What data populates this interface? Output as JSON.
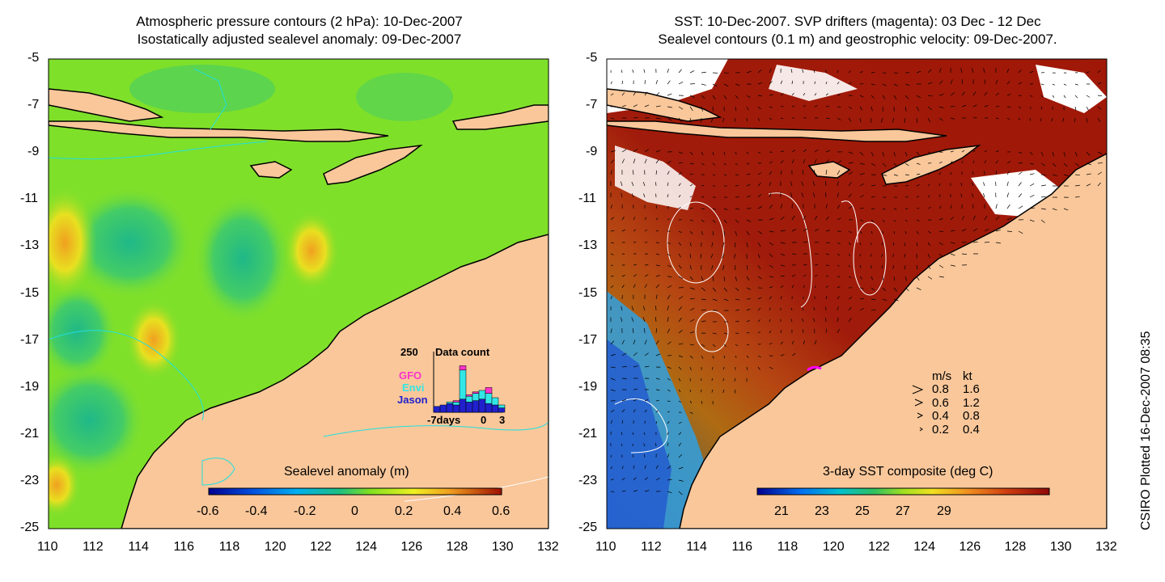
{
  "left_panel": {
    "title_line1": "Atmospheric pressure contours (2 hPa): 10-Dec-2007",
    "title_line2": "Isostatically adjusted sealevel anomaly: 09-Dec-2007",
    "colorbar_label": "Sealevel anomaly (m)",
    "colorbar_ticks": [
      "-0.6",
      "-0.4",
      "-0.2",
      "0",
      "0.2",
      "0.4",
      "0.6"
    ],
    "inset": {
      "title": "Data count",
      "ymax_label": "250",
      "x_left_label": "-7days",
      "x_mid_label": "0",
      "x_right_label": "3",
      "legend": [
        {
          "name": "GFO",
          "color": "#ff33cc"
        },
        {
          "name": "Envi",
          "color": "#33e6e6"
        },
        {
          "name": "Jason",
          "color": "#2020cc"
        }
      ]
    }
  },
  "right_panel": {
    "title_line1": "SST: 10-Dec-2007. SVP drifters (magenta): 03 Dec - 12 Dec",
    "title_line2": "Sealevel contours (0.1 m) and geostrophic velocity: 09-Dec-2007.",
    "colorbar_label": "3-day SST composite (deg C)",
    "colorbar_ticks": [
      "21",
      "23",
      "25",
      "27",
      "29"
    ],
    "velocity_legend": {
      "header_ms": "m/s",
      "header_kt": "kt",
      "rows": [
        {
          "ms": "0.8",
          "kt": "1.6"
        },
        {
          "ms": "0.6",
          "kt": "1.2"
        },
        {
          "ms": "0.4",
          "kt": "0.8"
        },
        {
          "ms": "0.2",
          "kt": "0.4"
        }
      ]
    }
  },
  "axes": {
    "lat_ticks": [
      "-5",
      "-7",
      "-9",
      "-11",
      "-13",
      "-15",
      "-17",
      "-19",
      "-21",
      "-23",
      "-25"
    ],
    "lon_ticks": [
      "110",
      "112",
      "114",
      "116",
      "118",
      "120",
      "122",
      "124",
      "126",
      "128",
      "130",
      "132"
    ]
  },
  "credit": "CSIRO Plotted 16-Dec-2007 08:35",
  "colors": {
    "land": "#f9c79a",
    "coast": "#000000",
    "sst_warm": "#a01808",
    "ssa_green": "#7fe02a",
    "cloud": "#ffffff"
  }
}
